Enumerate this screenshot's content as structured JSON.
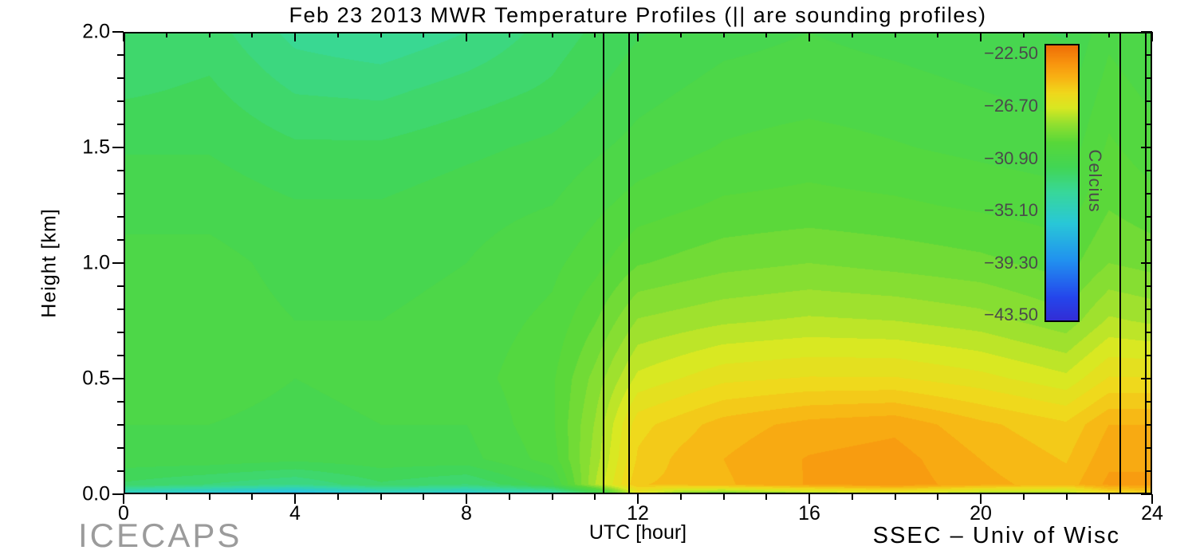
{
  "title": "Feb 23 2013 MWR Temperature Profiles (|| are sounding profiles)",
  "footer": {
    "left": "ICECAPS",
    "right": "SSEC – Univ of Wisc"
  },
  "axes": {
    "x": {
      "label": "UTC [hour]",
      "range": [
        0,
        24
      ],
      "major_ticks": [
        0,
        4,
        8,
        12,
        16,
        20,
        24
      ],
      "tick_labels": [
        "0",
        "4",
        "8",
        "12",
        "16",
        "20",
        "24"
      ],
      "minor_step": 1
    },
    "y": {
      "label": "Height [km]",
      "range": [
        0,
        2
      ],
      "major_ticks": [
        0,
        0.5,
        1,
        1.5,
        2
      ],
      "tick_labels": [
        "0.0",
        "0.5",
        "1.0",
        "1.5",
        "2.0"
      ],
      "minor_step": 0.1
    }
  },
  "colorbar": {
    "label": "Celcius",
    "tick_labels": [
      "−22.50",
      "−26.70",
      "−30.90",
      "−35.10",
      "−39.30",
      "−43.50"
    ],
    "tick_values": [
      -22.5,
      -26.7,
      -30.9,
      -35.1,
      -39.3,
      -43.5
    ],
    "range_top": -21.7,
    "range_bottom": -43.8
  },
  "chart_data": {
    "type": "heatmap",
    "title": "Feb 23 2013 MWR Temperature Profiles (|| are sounding profiles)",
    "xlabel": "UTC [hour]",
    "ylabel": "Height [km]",
    "units": "Celcius",
    "xlim": [
      0,
      24
    ],
    "ylim": [
      0,
      2
    ],
    "x_hours": [
      0,
      2,
      4,
      6,
      8,
      10,
      11,
      12,
      13,
      14,
      16,
      18,
      20,
      22,
      23,
      24
    ],
    "heights_km": [
      0.0,
      0.04,
      0.15,
      0.3,
      0.5,
      0.75,
      1.0,
      1.25,
      1.5,
      1.75,
      2.0
    ],
    "temperature_c": [
      [
        -35.5,
        -36.5,
        -37.5,
        -35.5,
        -36.0,
        -34.5,
        -32.0,
        -26.5,
        -28.5,
        -29.0,
        -28.0,
        -27.0,
        -28.0,
        -28.0,
        -26.0,
        -25.5
      ],
      [
        -32.0,
        -32.5,
        -33.0,
        -32.0,
        -32.5,
        -31.0,
        -27.5,
        -24.8,
        -24.6,
        -24.3,
        -23.6,
        -23.3,
        -24.0,
        -24.5,
        -23.5,
        -23.5
      ],
      [
        -31.0,
        -31.0,
        -31.2,
        -31.0,
        -31.0,
        -30.0,
        -27.8,
        -25.2,
        -24.6,
        -24.2,
        -23.6,
        -23.4,
        -24.2,
        -24.8,
        -23.8,
        -23.8
      ],
      [
        -30.8,
        -30.8,
        -31.0,
        -30.8,
        -30.8,
        -29.8,
        -28.0,
        -25.5,
        -25.0,
        -24.5,
        -24.0,
        -23.8,
        -24.6,
        -25.2,
        -24.2,
        -24.2
      ],
      [
        -30.5,
        -30.5,
        -30.8,
        -30.6,
        -30.5,
        -29.8,
        -28.4,
        -26.8,
        -26.4,
        -26.0,
        -25.8,
        -25.8,
        -26.2,
        -26.8,
        -25.8,
        -25.8
      ],
      [
        -30.5,
        -30.5,
        -30.8,
        -30.8,
        -30.6,
        -30.1,
        -29.2,
        -28.0,
        -27.8,
        -27.6,
        -27.4,
        -27.5,
        -27.8,
        -28.4,
        -27.4,
        -27.6
      ],
      [
        -30.6,
        -30.6,
        -31.0,
        -31.0,
        -30.8,
        -30.4,
        -29.9,
        -29.2,
        -29.0,
        -28.8,
        -28.6,
        -28.8,
        -29.0,
        -29.4,
        -28.6,
        -28.8
      ],
      [
        -31.0,
        -31.0,
        -31.3,
        -31.3,
        -31.0,
        -30.8,
        -30.4,
        -30.0,
        -29.8,
        -29.6,
        -29.5,
        -29.6,
        -29.8,
        -30.0,
        -29.2,
        -29.5
      ],
      [
        -31.4,
        -31.4,
        -31.8,
        -31.8,
        -31.5,
        -31.2,
        -30.9,
        -30.6,
        -30.4,
        -30.2,
        -30.0,
        -30.2,
        -30.4,
        -30.6,
        -29.6,
        -30.0
      ],
      [
        -32.0,
        -31.8,
        -32.5,
        -32.6,
        -32.2,
        -31.8,
        -31.4,
        -31.0,
        -30.8,
        -30.6,
        -30.5,
        -30.6,
        -30.8,
        -31.0,
        -30.0,
        -30.4
      ],
      [
        -32.4,
        -32.2,
        -33.2,
        -33.5,
        -33.0,
        -32.2,
        -31.8,
        -31.4,
        -31.2,
        -31.0,
        -30.8,
        -31.0,
        -31.2,
        -31.4,
        -30.4,
        -30.8
      ]
    ],
    "sounding_profile_hours": [
      11.2,
      11.8,
      23.25,
      23.85
    ],
    "colormap": [
      {
        "value": -45.0,
        "color": "#3c1ec8"
      },
      {
        "value": -42.0,
        "color": "#2546ec"
      },
      {
        "value": -39.0,
        "color": "#2192f0"
      },
      {
        "value": -36.0,
        "color": "#29c8d8"
      },
      {
        "value": -33.5,
        "color": "#38d89a"
      },
      {
        "value": -31.5,
        "color": "#42d655"
      },
      {
        "value": -29.5,
        "color": "#58d83a"
      },
      {
        "value": -28.0,
        "color": "#93e030"
      },
      {
        "value": -26.7,
        "color": "#d9e822"
      },
      {
        "value": -25.5,
        "color": "#f0d81c"
      },
      {
        "value": -24.3,
        "color": "#f8b414"
      },
      {
        "value": -23.0,
        "color": "#f8920e"
      },
      {
        "value": -21.5,
        "color": "#ee6a06"
      }
    ],
    "contour_band_step_c": 0.55,
    "legend_position": "right-inset"
  }
}
